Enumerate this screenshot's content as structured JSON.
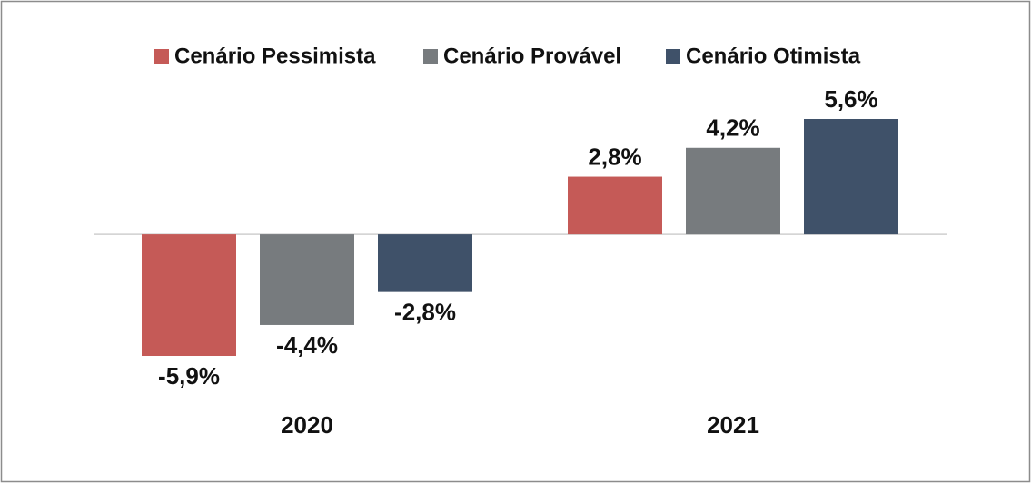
{
  "chart_data": {
    "type": "bar",
    "categories": [
      "2020",
      "2021"
    ],
    "series": [
      {
        "name": "Cenário Pessimista",
        "color": "#c55a57",
        "values": [
          -5.9,
          2.8
        ],
        "value_labels": [
          "-5,9%",
          "2,8%"
        ]
      },
      {
        "name": "Cenário Provável",
        "color": "#777b7e",
        "values": [
          -4.4,
          4.2
        ],
        "value_labels": [
          "-4,4%",
          "4,2%"
        ]
      },
      {
        "name": "Cenário Otimista",
        "color": "#3f5169",
        "values": [
          -2.8,
          5.6
        ],
        "value_labels": [
          "-2,8%",
          "5,6%"
        ]
      }
    ],
    "legend": "top"
  }
}
